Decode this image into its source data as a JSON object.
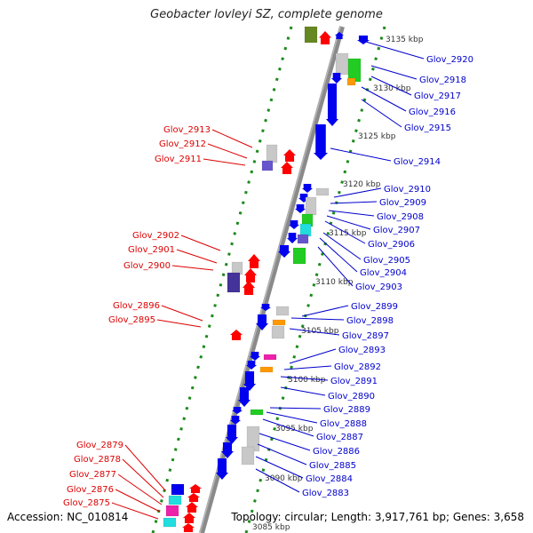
{
  "title": "Geobacter lovleyi SZ, complete genome",
  "accession": "Accession: NC_010814",
  "topology": "Topology: circular; Length: 3,917,761 bp; Genes: 3,658",
  "colors": {
    "backbone": "#8a8a8a",
    "right_labels": "#0000cc",
    "left_labels": "#dd0000",
    "tick_dots": "#1a8a1a",
    "gene_blue": "#0000ee",
    "gene_red": "#ff0000",
    "gene_grey": "#c8c8c8",
    "gene_green": "#22cc22",
    "gene_cyan": "#22dddd",
    "gene_purple": "#6655cc",
    "gene_navy": "#443399",
    "gene_orange": "#ff9900",
    "gene_magenta": "#ee22aa",
    "gene_olive": "#668822"
  },
  "kbp_ticks": [
    "3135 kbp",
    "3130 kbp",
    "3125 kbp",
    "3120 kbp",
    "3115 kbp",
    "3110 kbp",
    "3105 kbp",
    "3100 kbp",
    "3095 kbp",
    "3090 kbp",
    "3085 kbp"
  ],
  "right_genes": [
    "Glov_2920",
    "Glov_2918",
    "Glov_2917",
    "Glov_2916",
    "Glov_2915",
    "Glov_2914",
    "Glov_2910",
    "Glov_2909",
    "Glov_2908",
    "Glov_2907",
    "Glov_2906",
    "Glov_2905",
    "Glov_2904",
    "Glov_2903",
    "Glov_2899",
    "Glov_2898",
    "Glov_2897",
    "Glov_2893",
    "Glov_2892",
    "Glov_2891",
    "Glov_2890",
    "Glov_2889",
    "Glov_2888",
    "Glov_2887",
    "Glov_2886",
    "Glov_2885",
    "Glov_2884",
    "Glov_2883"
  ],
  "left_genes": [
    "Glov_2913",
    "Glov_2912",
    "Glov_2911",
    "Glov_2902",
    "Glov_2901",
    "Glov_2900",
    "Glov_2896",
    "Glov_2895",
    "Glov_2879",
    "Glov_2878",
    "Glov_2877",
    "Glov_2876",
    "Glov_2875"
  ]
}
